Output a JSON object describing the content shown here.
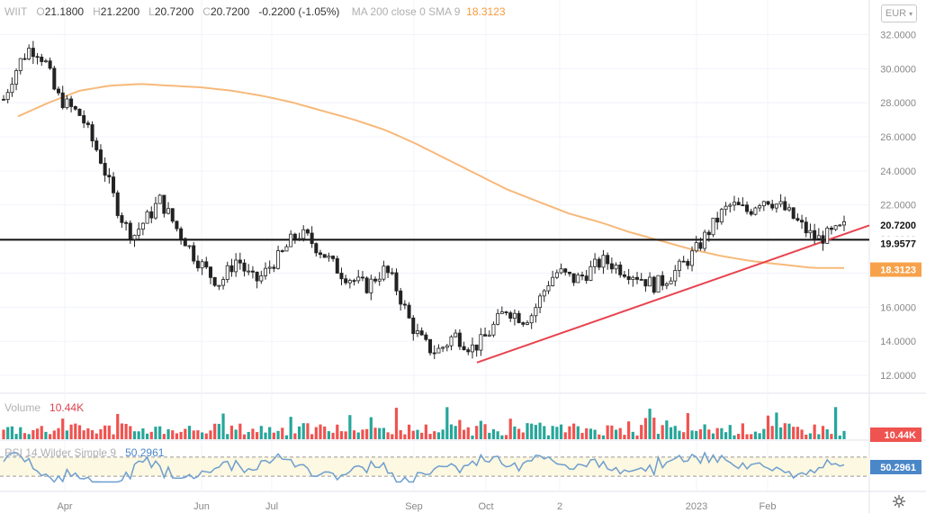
{
  "legend": {
    "symbol": "WIIT",
    "open_label": "O",
    "open": "21.1800",
    "high_label": "H",
    "high": "21.2200",
    "low_label": "L",
    "low": "20.7200",
    "close_label": "C",
    "close": "20.7200",
    "change": "-0.2200 (-1.05%)",
    "ma_label": "MA 200 close 0 SMA 9",
    "ma_value": "18.3123"
  },
  "currency_button": {
    "label": "EUR",
    "icon": "chevron-down-icon"
  },
  "volume_legend": {
    "label": "Volume",
    "value": "10.44K"
  },
  "rsi_legend": {
    "label": "RSI 14 Wilder Simple 9",
    "value": "50.2961"
  },
  "settings_icon": "gear-icon",
  "colors": {
    "up": "#26a69a",
    "down": "#ef5350",
    "ma": "#f7b97a",
    "trend": "#e8444f",
    "rsi": "#6d9ecf",
    "grid": "#f0f3fa"
  },
  "chart_data": {
    "type": "candlestick",
    "price_axis": {
      "ticks": [
        "32.0000",
        "30.0000",
        "28.0000",
        "26.0000",
        "24.0000",
        "22.0000",
        "20.0000",
        "18.0000",
        "16.0000",
        "14.0000",
        "12.0000"
      ],
      "range": [
        11.0,
        33.5
      ]
    },
    "time_axis": {
      "labels": [
        "Apr",
        "Jun",
        "Jul",
        "Sep",
        "Oct",
        "2",
        "2023",
        "Feb"
      ]
    },
    "price_labels": [
      {
        "value": "20.7200",
        "kind": "last"
      },
      {
        "value": "19.9577",
        "kind": "horizontal-line"
      },
      {
        "value": "18.3123",
        "kind": "ma"
      }
    ],
    "horizontal_line": 19.9577,
    "trendline": {
      "from": 12.75,
      "to": 20.8
    },
    "price_path": [
      28.2,
      29.5,
      30.5,
      31.2,
      31.0,
      30.2,
      28.5,
      28.0,
      27.6,
      27.2,
      26.0,
      25.0,
      23.5,
      22.0,
      20.8,
      20.2,
      20.9,
      21.5,
      22.3,
      21.5,
      20.6,
      19.9,
      19.0,
      18.4,
      17.8,
      17.4,
      18.2,
      18.9,
      18.0,
      17.5,
      17.9,
      18.6,
      19.0,
      19.8,
      20.3,
      20.1,
      19.6,
      19.1,
      18.5,
      18.0,
      17.7,
      17.4,
      17.2,
      17.8,
      18.2,
      17.5,
      16.3,
      15.0,
      14.2,
      13.6,
      13.4,
      13.8,
      14.4,
      14.0,
      13.6,
      13.9,
      14.5,
      15.2,
      15.9,
      15.6,
      15.3,
      15.6,
      16.6,
      17.6,
      18.1,
      17.8,
      17.6,
      17.9,
      18.3,
      18.7,
      18.6,
      18.3,
      18.1,
      17.9,
      17.6,
      17.3,
      17.5,
      17.9,
      18.3,
      18.8,
      19.4,
      20.2,
      20.9,
      21.6,
      22.0,
      21.8,
      21.6,
      22.2,
      22.4,
      22.1,
      21.8,
      21.3,
      20.8,
      20.3,
      20.0,
      20.2,
      20.4,
      20.7
    ],
    "ma_path": [
      27.2,
      28.0,
      28.7,
      29.0,
      29.1,
      29.0,
      28.9,
      28.7,
      28.4,
      28.0,
      27.5,
      27.0,
      26.4,
      25.6,
      24.7,
      23.8,
      22.9,
      22.2,
      21.5,
      21.0,
      20.4,
      19.9,
      19.4,
      19.0,
      18.7,
      18.5,
      18.3,
      18.3
    ],
    "rsi": {
      "current": 50.2961,
      "upper": 70,
      "lower": 30
    },
    "volume_current": "10.44K"
  }
}
